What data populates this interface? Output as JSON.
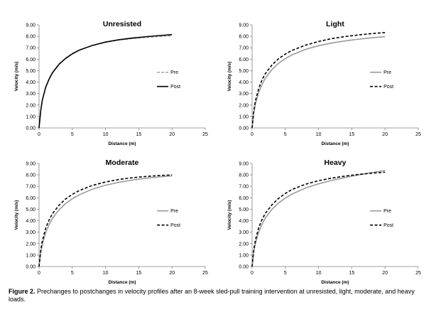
{
  "chart_data": [
    {
      "type": "line",
      "title": "Unresisted",
      "xlabel": "Distance (m)",
      "ylabel": "Velocity (m/s)",
      "xlim": [
        0,
        25
      ],
      "ylim": [
        0,
        9
      ],
      "x_ticks": [
        "0",
        "5",
        "10",
        "15",
        "20",
        "25"
      ],
      "y_ticks": [
        "0.00",
        "1.00",
        "2.00",
        "3.00",
        "4.00",
        "5.00",
        "6.00",
        "7.00",
        "8.00",
        "9.00"
      ],
      "legend": "center-right",
      "grid": false,
      "x": [
        0,
        0.25,
        0.5,
        1,
        1.5,
        2,
        3,
        4,
        5,
        6,
        8,
        10,
        12,
        14,
        16,
        18,
        20
      ],
      "series": [
        {
          "name": "Pre",
          "color": "#9a9a9a",
          "dash": "4,2",
          "width": 1.4,
          "values": [
            0,
            1.55,
            2.5,
            3.6,
            4.3,
            4.85,
            5.6,
            6.1,
            6.5,
            6.8,
            7.2,
            7.48,
            7.67,
            7.8,
            7.9,
            7.98,
            8.05
          ]
        },
        {
          "name": "Post",
          "color": "#000000",
          "dash": "",
          "width": 1.6,
          "values": [
            0,
            1.5,
            2.45,
            3.55,
            4.25,
            4.8,
            5.55,
            6.07,
            6.47,
            6.78,
            7.2,
            7.5,
            7.7,
            7.85,
            7.96,
            8.06,
            8.15
          ]
        }
      ]
    },
    {
      "type": "line",
      "title": "Light",
      "xlabel": "Distance (m)",
      "ylabel": "Velocity (m/s)",
      "xlim": [
        0,
        25
      ],
      "ylim": [
        0,
        9
      ],
      "x_ticks": [
        "0",
        "5",
        "10",
        "15",
        "20",
        "25"
      ],
      "y_ticks": [
        "0.00",
        "1.00",
        "2.00",
        "3.00",
        "4.00",
        "5.00",
        "6.00",
        "7.00",
        "8.00",
        "9.00"
      ],
      "legend": "center-right",
      "grid": false,
      "x": [
        0,
        0.25,
        0.5,
        1,
        1.5,
        2,
        3,
        4,
        5,
        6,
        8,
        10,
        12,
        14,
        16,
        18,
        20
      ],
      "series": [
        {
          "name": "Pre",
          "color": "#9a9a9a",
          "dash": "",
          "width": 1.6,
          "values": [
            0,
            1.3,
            2.1,
            3.1,
            3.8,
            4.35,
            5.1,
            5.65,
            6.05,
            6.38,
            6.85,
            7.18,
            7.42,
            7.6,
            7.75,
            7.87,
            7.97
          ]
        },
        {
          "name": "Post",
          "color": "#000000",
          "dash": "4,2.5",
          "width": 1.6,
          "values": [
            0,
            1.45,
            2.35,
            3.45,
            4.2,
            4.75,
            5.5,
            6.05,
            6.45,
            6.77,
            7.22,
            7.55,
            7.8,
            7.98,
            8.12,
            8.24,
            8.33
          ]
        }
      ]
    },
    {
      "type": "line",
      "title": "Moderate",
      "xlabel": "Distance (m)",
      "ylabel": "Velocity (m/s)",
      "xlim": [
        0,
        25
      ],
      "ylim": [
        0,
        9
      ],
      "x_ticks": [
        "0",
        "5",
        "10",
        "15",
        "20",
        "25"
      ],
      "y_ticks": [
        "0.00",
        "1.00",
        "2.00",
        "3.00",
        "4.00",
        "5.00",
        "6.00",
        "7.00",
        "8.00",
        "9.00"
      ],
      "legend": "center-right",
      "grid": false,
      "x": [
        0,
        0.25,
        0.5,
        1,
        1.5,
        2,
        3,
        4,
        5,
        6,
        8,
        10,
        12,
        14,
        16,
        18,
        20
      ],
      "series": [
        {
          "name": "Pre",
          "color": "#9a9a9a",
          "dash": "",
          "width": 1.6,
          "values": [
            0,
            1.2,
            1.95,
            2.95,
            3.65,
            4.2,
            4.95,
            5.5,
            5.92,
            6.25,
            6.75,
            7.1,
            7.35,
            7.55,
            7.7,
            7.82,
            7.92
          ]
        },
        {
          "name": "Post",
          "color": "#000000",
          "dash": "4,2.5",
          "width": 1.6,
          "values": [
            0,
            1.4,
            2.25,
            3.35,
            4.05,
            4.6,
            5.35,
            5.9,
            6.3,
            6.62,
            7.08,
            7.38,
            7.6,
            7.75,
            7.86,
            7.94,
            8.0
          ]
        }
      ]
    },
    {
      "type": "line",
      "title": "Heavy",
      "xlabel": "Distance (m)",
      "ylabel": "Velocity (m/s)",
      "xlim": [
        0,
        25
      ],
      "ylim": [
        0,
        9
      ],
      "x_ticks": [
        "0",
        "5",
        "10",
        "15",
        "20",
        "25"
      ],
      "y_ticks": [
        "0.00",
        "1.00",
        "2.00",
        "3.00",
        "4.00",
        "5.00",
        "6.00",
        "7.00",
        "8.00",
        "9.00"
      ],
      "legend": "center-right",
      "grid": false,
      "x": [
        0,
        0.25,
        0.5,
        1,
        1.5,
        2,
        3,
        4,
        5,
        6,
        8,
        10,
        12,
        14,
        16,
        18,
        20
      ],
      "series": [
        {
          "name": "Pre",
          "color": "#9a9a9a",
          "dash": "",
          "width": 1.6,
          "values": [
            0,
            1.25,
            2.0,
            3.0,
            3.7,
            4.25,
            5.0,
            5.55,
            5.98,
            6.32,
            6.85,
            7.22,
            7.52,
            7.78,
            8.0,
            8.2,
            8.38
          ]
        },
        {
          "name": "Post",
          "color": "#000000",
          "dash": "4,2.5",
          "width": 1.6,
          "values": [
            0,
            1.45,
            2.3,
            3.4,
            4.1,
            4.65,
            5.4,
            5.95,
            6.38,
            6.72,
            7.18,
            7.5,
            7.72,
            7.9,
            8.04,
            8.15,
            8.24
          ]
        }
      ]
    }
  ],
  "caption": {
    "label": "Figure 2.",
    "text": " Prechanges to postchanges in velocity profiles after an 8-week sled-pull training intervention at unresisted, light, moderate, and heavy loads."
  }
}
